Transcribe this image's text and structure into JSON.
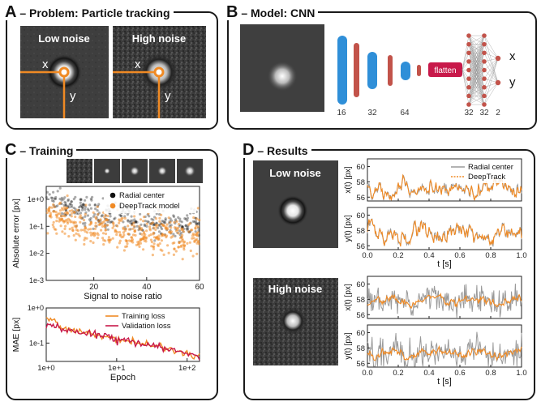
{
  "panels": {
    "a": {
      "letter": "A",
      "title": "– Problem: Particle tracking",
      "low_label": "Low noise",
      "high_label": "High noise",
      "x_label": "x",
      "y_label": "y"
    },
    "b": {
      "letter": "B",
      "title": "– Model: CNN",
      "flatten_label": "flatten",
      "layer_counts": [
        "16",
        "32",
        "64",
        "32",
        "32",
        "2"
      ],
      "out_x": "x",
      "out_y": "y"
    },
    "c": {
      "letter": "C",
      "title": "– Training"
    },
    "d": {
      "letter": "D",
      "title": "– Results",
      "low_label": "Low noise",
      "high_label": "High noise"
    }
  },
  "colors": {
    "orange": "#f08a24",
    "blue": "#2f8fd8",
    "red": "#c2534a",
    "crimson": "#c8194a",
    "gray": "#9a9a9a",
    "black": "#111111"
  },
  "chart_data": [
    {
      "id": "error-vs-snr",
      "type": "scatter",
      "xlabel": "Signal to noise ratio",
      "ylabel": "Absolute error [px]",
      "xlim": [
        2,
        60
      ],
      "ylim": [
        0.001,
        3
      ],
      "yscale": "log",
      "xticks": [
        "20",
        "40",
        "60"
      ],
      "yticks": [
        "1e+0",
        "1e-1",
        "1e-2",
        "1e-3"
      ],
      "series": [
        {
          "name": "Radial center",
          "color": "#111111",
          "trend_x": [
            2,
            5,
            10,
            15,
            20,
            25,
            30,
            40,
            50,
            60
          ],
          "trend_y": [
            1.2,
            0.9,
            0.6,
            0.4,
            0.3,
            0.24,
            0.2,
            0.15,
            0.12,
            0.1
          ]
        },
        {
          "name": "DeepTrack model",
          "color": "#f08a24",
          "trend_x": [
            2,
            5,
            10,
            15,
            20,
            25,
            30,
            40,
            50,
            60
          ],
          "trend_y": [
            0.35,
            0.25,
            0.15,
            0.1,
            0.08,
            0.07,
            0.06,
            0.05,
            0.045,
            0.04
          ]
        }
      ]
    },
    {
      "id": "loss-vs-epoch",
      "type": "line",
      "xlabel": "Epoch",
      "ylabel": "MAE [px]",
      "xscale": "log",
      "yscale": "log",
      "xlim": [
        1,
        150
      ],
      "ylim": [
        0.03,
        1.0
      ],
      "xticks": [
        "1e+0",
        "1e+1",
        "1e+2"
      ],
      "yticks": [
        "1e+0",
        "1e-1"
      ],
      "series": [
        {
          "name": "Training loss",
          "color": "#f08a24",
          "x": [
            1,
            1.5,
            2,
            3,
            5,
            10,
            20,
            50,
            100,
            150
          ],
          "y": [
            0.6,
            0.3,
            0.25,
            0.2,
            0.17,
            0.13,
            0.1,
            0.07,
            0.05,
            0.04
          ]
        },
        {
          "name": "Validation loss",
          "color": "#c8194a",
          "x": [
            1,
            1.5,
            2,
            3,
            5,
            10,
            20,
            50,
            100,
            150
          ],
          "y": [
            0.32,
            0.25,
            0.22,
            0.19,
            0.17,
            0.13,
            0.1,
            0.07,
            0.05,
            0.04
          ]
        }
      ]
    },
    {
      "id": "results-traces",
      "type": "line",
      "xlabel": "t [s]",
      "xlim": [
        0,
        1
      ],
      "xticks": [
        "0.0",
        "0.2",
        "0.4",
        "0.6",
        "0.8",
        "1.0"
      ],
      "ylim": [
        55.5,
        61
      ],
      "yticks": [
        "56",
        "58",
        "60"
      ],
      "legend": [
        "Radial center",
        "DeepTrack"
      ],
      "subplots": [
        {
          "ylabel": "x(t) [px]",
          "noise": "low",
          "base": 57.2,
          "amp": 0.9,
          "seed": 3
        },
        {
          "ylabel": "y(t) [px]",
          "noise": "low",
          "base": 57.8,
          "amp": 1.1,
          "seed": 7
        },
        {
          "ylabel": "x(t) [px]",
          "noise": "high",
          "base": 57.8,
          "amp": 0.5,
          "seed": 11
        },
        {
          "ylabel": "y(t) [px]",
          "noise": "high",
          "base": 57.4,
          "amp": 0.5,
          "seed": 17
        }
      ]
    }
  ]
}
